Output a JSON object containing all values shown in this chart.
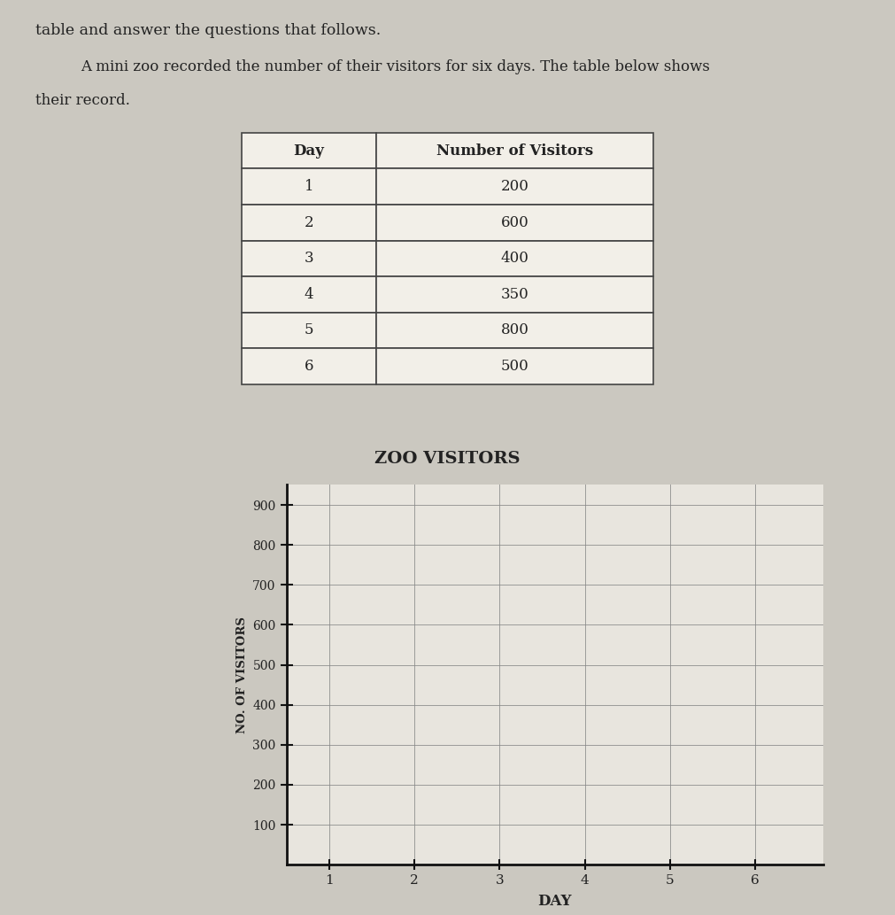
{
  "title_text": "table and answer the questions that follows.",
  "paragraph_line1": "A mini zoo recorded the number of their visitors for six days. The table below shows",
  "paragraph_line2": "their record.",
  "table_headers": [
    "Day",
    "Number of Visitors"
  ],
  "table_rows": [
    [
      "1",
      "200"
    ],
    [
      "2",
      "600"
    ],
    [
      "3",
      "400"
    ],
    [
      "4",
      "350"
    ],
    [
      "5",
      "800"
    ],
    [
      "6",
      "500"
    ]
  ],
  "chart_title": "ZOO VISITORS",
  "chart_xlabel": "DAY",
  "chart_ylabel": "NO. OF VISITORS",
  "yticks": [
    100,
    200,
    300,
    400,
    500,
    600,
    700,
    800,
    900
  ],
  "xticks": [
    1,
    2,
    3,
    4,
    5,
    6
  ],
  "ylim": [
    0,
    950
  ],
  "xlim": [
    0.5,
    6.8
  ],
  "background_color": "#cbc8c0",
  "paper_color": "#e5e1d8",
  "chart_bg_color": "#e8e5de",
  "grid_color": "#888888",
  "axis_color": "#111111",
  "text_color": "#222222",
  "table_border_color": "#444444",
  "table_cell_color": "#f2efe8"
}
